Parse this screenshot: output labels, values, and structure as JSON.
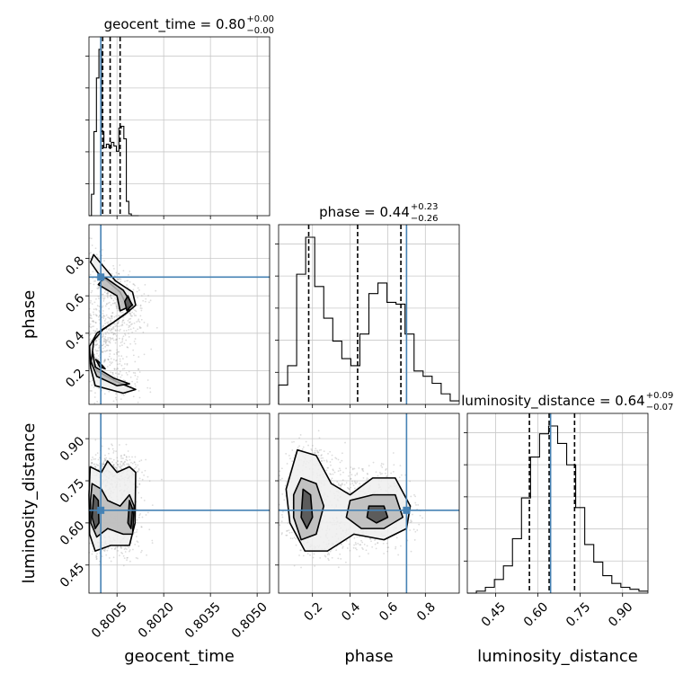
{
  "chart_data": {
    "type": "corner",
    "parameters": [
      "geocent_time",
      "phase",
      "luminosity_distance"
    ],
    "truths": {
      "geocent_time": 0.79998,
      "phase": 0.7,
      "luminosity_distance": 0.645
    },
    "titles": [
      {
        "param": "geocent_time",
        "text": "geocent_time = 0.80",
        "sup": "+0.00",
        "sub": "−0.00"
      },
      {
        "param": "phase",
        "text": "phase = 0.44",
        "sup": "+0.23",
        "sub": "−0.26"
      },
      {
        "param": "luminosity_distance",
        "text": "luminosity_distance = 0.64",
        "sup": "+0.09",
        "sub": "−0.07"
      }
    ],
    "axes": {
      "geocent_time": {
        "label": "geocent_time",
        "range": [
          0.7996,
          0.8054
        ],
        "ticks": [
          0.8005,
          0.802,
          0.8035,
          0.805
        ],
        "tick_labels": [
          "0.8005",
          "0.8020",
          "0.8035",
          "0.8050"
        ]
      },
      "phase": {
        "label": "phase",
        "range": [
          0.02,
          0.98
        ],
        "ticks": [
          0.2,
          0.4,
          0.6,
          0.8
        ],
        "tick_labels": [
          "0.2",
          "0.4",
          "0.6",
          "0.8"
        ]
      },
      "luminosity_distance": {
        "label": "luminosity_distance",
        "range": [
          0.35,
          0.99
        ],
        "ticks": [
          0.45,
          0.6,
          0.75,
          0.9
        ],
        "tick_labels": [
          "0.45",
          "0.60",
          "0.75",
          "0.90"
        ]
      }
    },
    "quantiles": {
      "geocent_time": [
        0.80004,
        0.80028,
        0.8006
      ],
      "phase": [
        0.18,
        0.44,
        0.67
      ],
      "luminosity_distance": [
        0.57,
        0.64,
        0.73
      ]
    },
    "histograms": {
      "geocent_time": {
        "bin_edges": [
          0.7996,
          0.79968,
          0.79976,
          0.79984,
          0.79992,
          0.8,
          0.80008,
          0.80016,
          0.80024,
          0.80032,
          0.8004,
          0.80048,
          0.80056,
          0.80064,
          0.80072,
          0.8008,
          0.80088,
          0.80096,
          0.80104,
          0.80112,
          0.8012
        ],
        "counts": [
          0,
          0.12,
          0.47,
          0.77,
          0.93,
          0.47,
          0.38,
          0.4,
          0.38,
          0.41,
          0.39,
          0.36,
          0.49,
          0.5,
          0.43,
          0.08,
          0.01,
          0,
          0,
          0
        ]
      },
      "phase": {
        "bin_edges": [
          0.02,
          0.068,
          0.116,
          0.164,
          0.212,
          0.26,
          0.308,
          0.356,
          0.404,
          0.452,
          0.5,
          0.548,
          0.596,
          0.644,
          0.692,
          0.74,
          0.788,
          0.836,
          0.884,
          0.932,
          0.98
        ],
        "counts": [
          0.11,
          0.22,
          0.74,
          0.95,
          0.67,
          0.49,
          0.36,
          0.26,
          0.22,
          0.4,
          0.63,
          0.69,
          0.58,
          0.57,
          0.4,
          0.19,
          0.16,
          0.12,
          0.06,
          0.02
        ]
      },
      "luminosity_distance": {
        "bin_edges": [
          0.35,
          0.382,
          0.414,
          0.446,
          0.478,
          0.51,
          0.542,
          0.574,
          0.606,
          0.638,
          0.67,
          0.702,
          0.734,
          0.766,
          0.798,
          0.83,
          0.862,
          0.894,
          0.926,
          0.958,
          0.99
        ],
        "counts": [
          0,
          0.01,
          0.03,
          0.07,
          0.14,
          0.28,
          0.49,
          0.7,
          0.82,
          0.86,
          0.77,
          0.66,
          0.44,
          0.25,
          0.16,
          0.09,
          0.05,
          0.03,
          0.02,
          0.01
        ]
      }
    },
    "contours": {
      "geocent_time|phase": [
        {
          "level": "outer",
          "points": [
            [
              0.79975,
              0.82
            ],
            [
              0.80045,
              0.68
            ],
            [
              0.801,
              0.62
            ],
            [
              0.8011,
              0.55
            ],
            [
              0.80075,
              0.5
            ],
            [
              0.80005,
              0.42
            ],
            [
              0.79975,
              0.36
            ],
            [
              0.7997,
              0.28
            ],
            [
              0.79985,
              0.2
            ],
            [
              0.8005,
              0.14
            ],
            [
              0.8011,
              0.1
            ],
            [
              0.8007,
              0.08
            ],
            [
              0.7998,
              0.12
            ],
            [
              0.79965,
              0.22
            ],
            [
              0.79962,
              0.33
            ],
            [
              0.79985,
              0.4
            ],
            [
              0.8004,
              0.46
            ],
            [
              0.8009,
              0.52
            ],
            [
              0.8006,
              0.62
            ],
            [
              0.7999,
              0.72
            ],
            [
              0.79965,
              0.78
            ]
          ]
        },
        {
          "level": "middle",
          "points": [
            [
              0.8001,
              0.7
            ],
            [
              0.8007,
              0.63
            ],
            [
              0.801,
              0.55
            ],
            [
              0.8006,
              0.52
            ],
            [
              0.8005,
              0.6
            ],
            [
              0.7999,
              0.66
            ]
          ]
        },
        {
          "level": "middle",
          "points": [
            [
              0.79972,
              0.3
            ],
            [
              0.7998,
              0.22
            ],
            [
              0.8004,
              0.16
            ],
            [
              0.8009,
              0.13
            ],
            [
              0.8005,
              0.12
            ],
            [
              0.79985,
              0.17
            ],
            [
              0.79966,
              0.25
            ]
          ]
        },
        {
          "level": "inner",
          "points": [
            [
              0.80085,
              0.6
            ],
            [
              0.80098,
              0.55
            ],
            [
              0.80082,
              0.52
            ],
            [
              0.80075,
              0.57
            ]
          ]
        },
        {
          "level": "inner",
          "points": [
            [
              0.79982,
              0.26
            ],
            [
              0.79995,
              0.22
            ],
            [
              0.80012,
              0.21
            ],
            [
              0.7999,
              0.25
            ]
          ]
        }
      ],
      "geocent_time|luminosity_distance": [
        {
          "level": "outer",
          "points": [
            [
              0.79964,
              0.8
            ],
            [
              0.8,
              0.78
            ],
            [
              0.8002,
              0.82
            ],
            [
              0.8005,
              0.78
            ],
            [
              0.8009,
              0.8
            ],
            [
              0.8011,
              0.78
            ],
            [
              0.80108,
              0.6
            ],
            [
              0.8009,
              0.52
            ],
            [
              0.8003,
              0.52
            ],
            [
              0.7998,
              0.5
            ],
            [
              0.79962,
              0.56
            ],
            [
              0.7996,
              0.7
            ]
          ]
        },
        {
          "level": "middle",
          "points": [
            [
              0.7997,
              0.74
            ],
            [
              0.8,
              0.72
            ],
            [
              0.8002,
              0.68
            ],
            [
              0.8006,
              0.66
            ],
            [
              0.8009,
              0.7
            ],
            [
              0.80105,
              0.66
            ],
            [
              0.801,
              0.56
            ],
            [
              0.8007,
              0.56
            ],
            [
              0.8002,
              0.58
            ],
            [
              0.79985,
              0.55
            ],
            [
              0.79966,
              0.6
            ],
            [
              0.79965,
              0.68
            ]
          ]
        },
        {
          "level": "inner",
          "points": [
            [
              0.79975,
              0.7
            ],
            [
              0.7999,
              0.68
            ],
            [
              0.79992,
              0.6
            ],
            [
              0.7998,
              0.58
            ],
            [
              0.7997,
              0.62
            ]
          ]
        },
        {
          "level": "inner",
          "points": [
            [
              0.8009,
              0.68
            ],
            [
              0.801,
              0.65
            ],
            [
              0.80095,
              0.58
            ],
            [
              0.80085,
              0.6
            ]
          ]
        }
      ],
      "phase|luminosity_distance": [
        {
          "level": "outer",
          "points": [
            [
              0.12,
              0.86
            ],
            [
              0.22,
              0.84
            ],
            [
              0.3,
              0.74
            ],
            [
              0.4,
              0.7
            ],
            [
              0.52,
              0.76
            ],
            [
              0.64,
              0.76
            ],
            [
              0.72,
              0.66
            ],
            [
              0.7,
              0.58
            ],
            [
              0.58,
              0.54
            ],
            [
              0.42,
              0.56
            ],
            [
              0.28,
              0.5
            ],
            [
              0.16,
              0.5
            ],
            [
              0.08,
              0.6
            ],
            [
              0.06,
              0.72
            ]
          ]
        },
        {
          "level": "middle",
          "points": [
            [
              0.14,
              0.76
            ],
            [
              0.22,
              0.74
            ],
            [
              0.26,
              0.66
            ],
            [
              0.22,
              0.56
            ],
            [
              0.14,
              0.54
            ],
            [
              0.1,
              0.62
            ],
            [
              0.1,
              0.7
            ]
          ]
        },
        {
          "level": "middle",
          "points": [
            [
              0.4,
              0.68
            ],
            [
              0.52,
              0.7
            ],
            [
              0.64,
              0.7
            ],
            [
              0.68,
              0.62
            ],
            [
              0.58,
              0.58
            ],
            [
              0.46,
              0.58
            ],
            [
              0.38,
              0.62
            ]
          ]
        },
        {
          "level": "inner",
          "points": [
            [
              0.15,
              0.72
            ],
            [
              0.19,
              0.7
            ],
            [
              0.2,
              0.62
            ],
            [
              0.17,
              0.58
            ],
            [
              0.14,
              0.62
            ]
          ]
        },
        {
          "level": "inner",
          "points": [
            [
              0.5,
              0.66
            ],
            [
              0.58,
              0.66
            ],
            [
              0.6,
              0.62
            ],
            [
              0.54,
              0.6
            ],
            [
              0.49,
              0.62
            ]
          ]
        }
      ]
    },
    "grid": true,
    "colors": {
      "truth": "#4682b4",
      "line": "#000000",
      "grid": "#c8c8c8",
      "scatter": "#9a9a9a"
    }
  }
}
